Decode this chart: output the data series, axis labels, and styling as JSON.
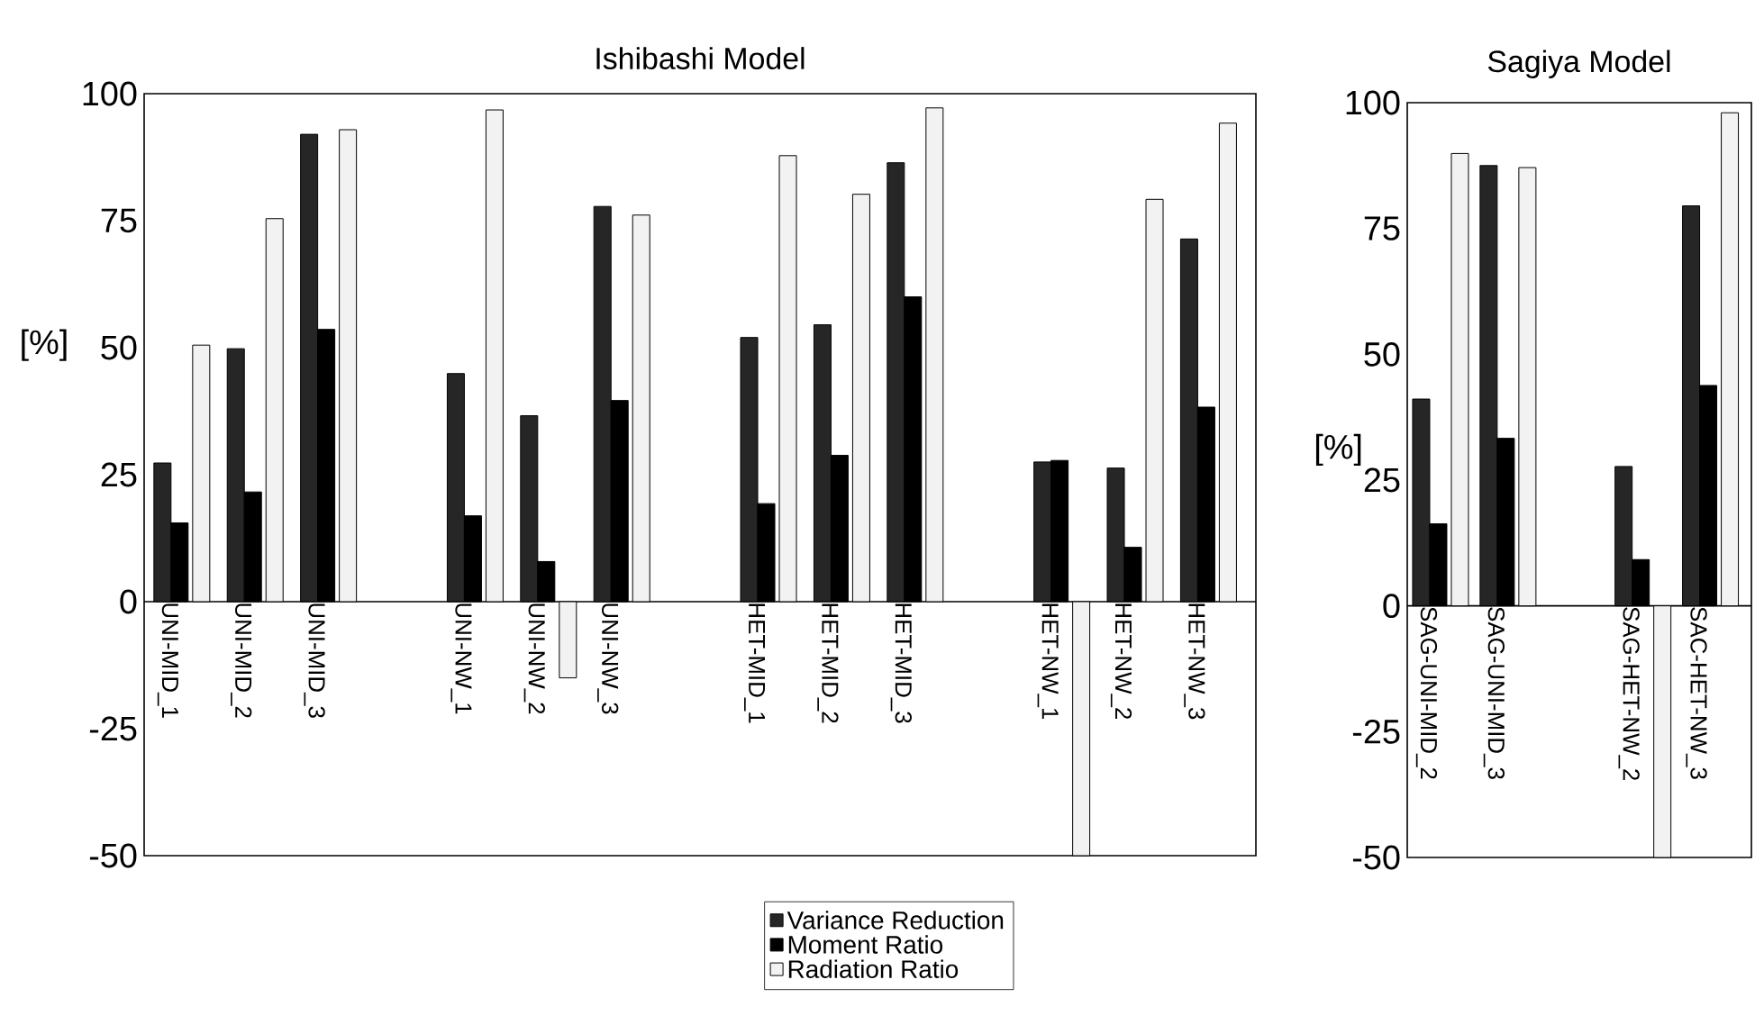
{
  "chart_data": [
    {
      "type": "bar",
      "title": "Ishibashi Model",
      "ylabel": "[%]",
      "categories": [
        "UNI-MID_1",
        "UNI-MID_2",
        "UNI-MID_3",
        null,
        "UNI-NW_1",
        "UNI-NW_2",
        "UNI-NW_3",
        null,
        "HET-MID_1",
        "HET-MID_2",
        "HET-MID_3",
        null,
        "HET-NW_1",
        "HET-NW_2",
        "HET-NW_3"
      ],
      "series": [
        {
          "name": "Variance Reduction",
          "color": "#262626",
          "values": [
            27.3,
            49.8,
            92.0,
            null,
            44.9,
            36.6,
            77.8,
            null,
            52.0,
            54.5,
            86.4,
            null,
            27.5,
            26.3,
            71.4
          ]
        },
        {
          "name": "Moment Ratio",
          "color": "#000000",
          "values": [
            15.5,
            21.6,
            53.6,
            null,
            16.9,
            7.9,
            39.6,
            null,
            19.3,
            28.8,
            60.0,
            null,
            27.8,
            10.7,
            38.3
          ]
        },
        {
          "name": "Radiation Ratio",
          "color": "#f2f2f2",
          "values": [
            50.5,
            75.4,
            92.9,
            null,
            96.8,
            -15,
            76.1,
            null,
            87.8,
            80.2,
            97.2,
            null,
            -50,
            79.2,
            94.2
          ]
        }
      ],
      "ylim": [
        -50,
        100
      ],
      "yticks": [
        -50,
        -25,
        0,
        25,
        50,
        75,
        100
      ],
      "legend": "bottom"
    },
    {
      "type": "bar",
      "title": "Sagiya Model",
      "ylabel": "[%]",
      "categories": [
        "SAG-UNI-MID_2",
        "SAG-UNI-MID_3",
        null,
        "SAG-HET-NW_2",
        "SAC-HET-NW_3"
      ],
      "series": [
        {
          "color": "#262626",
          "values": [
            41.1,
            87.5,
            null,
            27.7,
            79.5
          ]
        },
        {
          "color": "#000000",
          "values": [
            16.3,
            33.3,
            null,
            9.2,
            43.8
          ]
        },
        {
          "color": "#f2f2f2",
          "values": [
            89.9,
            87.1,
            null,
            -50,
            98.0
          ]
        }
      ],
      "ylim": [
        -50,
        100
      ],
      "yticks": [
        -50,
        -25,
        0,
        25,
        50,
        75,
        100
      ]
    }
  ]
}
